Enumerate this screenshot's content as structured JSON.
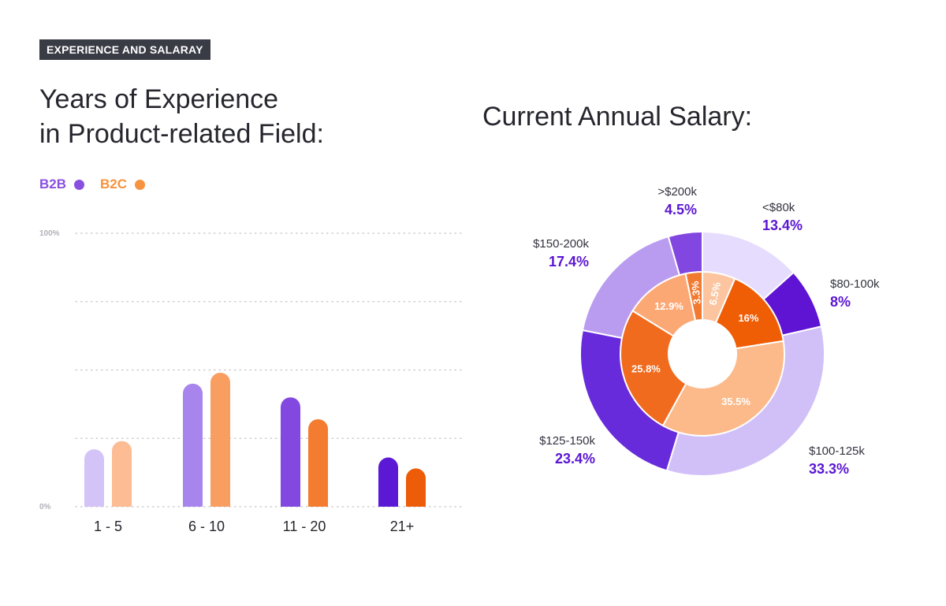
{
  "tag": "EXPERIENCE AND SALARAY",
  "left_title": [
    "Years of Experience",
    "in Product-related Field:"
  ],
  "right_title": "Current Annual Salary:",
  "legend": [
    {
      "label": "B2B",
      "color": "#8a4fe0"
    },
    {
      "label": "B2C",
      "color": "#f7923e"
    }
  ],
  "chart_data": [
    {
      "type": "bar",
      "categories": [
        "1 - 5",
        "6 - 10",
        "11 - 20",
        "21+"
      ],
      "ylim": [
        0,
        100
      ],
      "ytick_labels": [
        "100%",
        "0%"
      ],
      "grid": true,
      "series": [
        {
          "name": "B2B",
          "values": [
            21,
            45,
            40,
            18
          ],
          "colors": [
            "#d4c3f7",
            "#a885ec",
            "#8248e0",
            "#5b19d5"
          ]
        },
        {
          "name": "B2C",
          "values": [
            24,
            49,
            32,
            14
          ],
          "colors": [
            "#fdbc93",
            "#f99e61",
            "#f47c30",
            "#ec5c09"
          ]
        }
      ]
    },
    {
      "type": "pie",
      "subtype": "donut",
      "outer_ring": {
        "slices": [
          {
            "label": "<$80k",
            "value": "13.4%",
            "pct": 13.4,
            "color": "#e6dcfd"
          },
          {
            "label": "$80-100k",
            "value": "8%",
            "pct": 8,
            "color": "#5e14d2"
          },
          {
            "label": "$100-125k",
            "value": "33.3%",
            "pct": 33.3,
            "color": "#d1c0f7"
          },
          {
            "label": "$125-150k",
            "value": "23.4%",
            "pct": 23.4,
            "color": "#682bdc"
          },
          {
            "label": "$150-200k",
            "value": "17.4%",
            "pct": 17.4,
            "color": "#b99cf0"
          },
          {
            "label": ">$200k",
            "value": "4.5%",
            "pct": 4.5,
            "color": "#8247e0"
          }
        ]
      },
      "inner_ring": {
        "slices": [
          {
            "value": "6.5%",
            "pct": 6.5,
            "color": "#fcc59f",
            "text_color": "#ffffff",
            "rotated": true
          },
          {
            "value": "16%",
            "pct": 16,
            "color": "#ef5d05",
            "text_color": "#ffffff",
            "rotated": false
          },
          {
            "value": "35.5%",
            "pct": 35.5,
            "color": "#fcba8a",
            "text_color": "#ffffff",
            "rotated": false
          },
          {
            "value": "25.8%",
            "pct": 25.8,
            "color": "#f06b1e",
            "text_color": "#ffffff",
            "rotated": false
          },
          {
            "value": "12.9%",
            "pct": 12.9,
            "color": "#fba875",
            "text_color": "#ffffff",
            "rotated": false
          },
          {
            "value": "3.3%",
            "pct": 3.3,
            "color": "#f27a30",
            "text_color": "#ffffff",
            "rotated": true
          }
        ]
      }
    }
  ]
}
